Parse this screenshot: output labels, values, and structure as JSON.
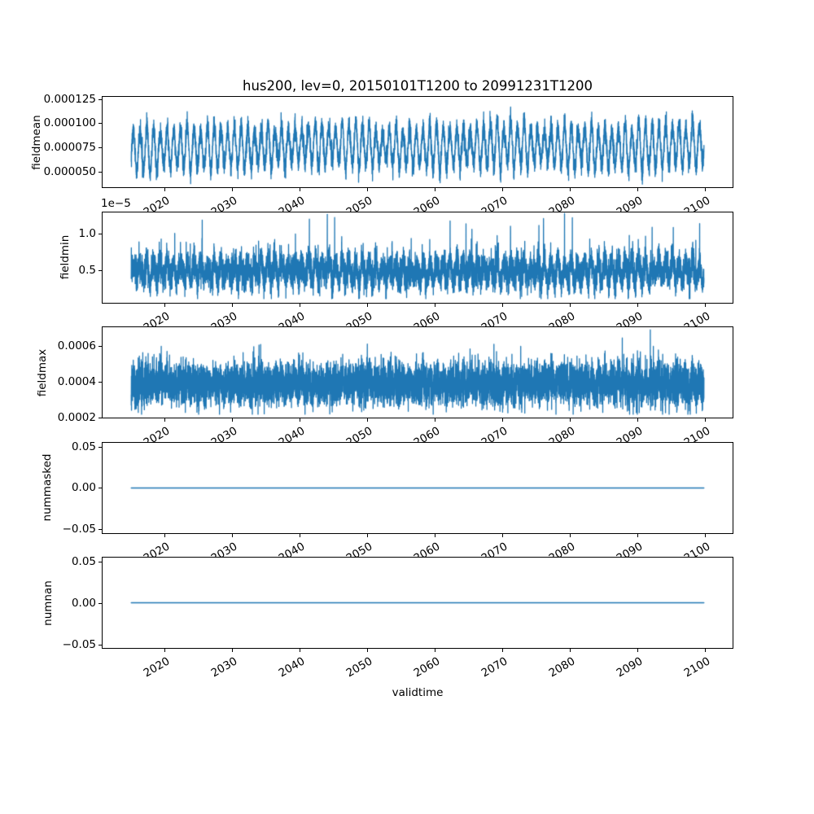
{
  "title": "hus200, lev=0, 20150101T1200 to 20991231T1200",
  "xlabel": "validtime",
  "colors": {
    "line": "#1f77b4",
    "axis": "#000000",
    "background": "#ffffff",
    "text": "#000000"
  },
  "xaxis": {
    "xlim": [
      2010.75,
      2104.25
    ],
    "data_range": [
      2015,
      2100
    ],
    "ticks": [
      2020,
      2030,
      2040,
      2050,
      2060,
      2070,
      2080,
      2090,
      2100
    ],
    "tick_labels": [
      "2020",
      "2030",
      "2040",
      "2050",
      "2060",
      "2070",
      "2080",
      "2090",
      "2100"
    ],
    "label_rotation_deg": 30
  },
  "chart_data": [
    {
      "type": "line",
      "name": "fieldmean",
      "ylabel": "fieldmean",
      "ylim": [
        3.3e-05,
        0.000128
      ],
      "yticks": [
        {
          "value": 0.000125,
          "label": "0.000125"
        },
        {
          "value": 0.0001,
          "label": "0.000100"
        },
        {
          "value": 7.5e-05,
          "label": "0.000075"
        },
        {
          "value": 5e-05,
          "label": "0.000050"
        }
      ],
      "offset_text": "",
      "series": {
        "kind": "seasonal_noise",
        "seed": 42,
        "n": 8500,
        "baseline": 6.9e-05,
        "ramp": 7e-06,
        "ramp_years": 12,
        "slow_amp": 1.5e-06,
        "slow_period": 28,
        "seasonal_amp": 2.05e-05,
        "amp_jitter": 0.28,
        "noise_sigma": 5.5e-06,
        "spike_prob": 0,
        "spike_add": [
          0,
          0
        ],
        "clip": [
          3.35e-05,
          0.000126
        ]
      }
    },
    {
      "type": "line",
      "name": "fieldmin",
      "ylabel": "fieldmin",
      "ylim": [
        4.2e-07,
        1.308e-05
      ],
      "yticks": [
        {
          "value": 1e-05,
          "label": "1.0"
        },
        {
          "value": 5e-06,
          "label": "0.5"
        }
      ],
      "offset_text": "1e−5",
      "series": {
        "kind": "seasonal_noise",
        "seed": 7,
        "n": 8500,
        "baseline": 4.9e-06,
        "ramp": 0,
        "ramp_years": 1,
        "slow_amp": 1e-07,
        "slow_period": 25,
        "seasonal_amp": 1.15e-06,
        "amp_jitter": 0.45,
        "noise_sigma": 1.1e-06,
        "spike_prob": 0.0024,
        "spike_add": [
          2.2e-06,
          6.8e-06
        ],
        "clip": [
          1e-06,
          1.295e-05
        ]
      }
    },
    {
      "type": "line",
      "name": "fieldmax",
      "ylabel": "fieldmax",
      "ylim": [
        0.000196,
        0.00071
      ],
      "yticks": [
        {
          "value": 0.0006,
          "label": "0.0006"
        },
        {
          "value": 0.0004,
          "label": "0.0004"
        },
        {
          "value": 0.0002,
          "label": "0.0002"
        }
      ],
      "offset_text": "",
      "series": {
        "kind": "seasonal_noise",
        "seed": 1337,
        "n": 9000,
        "baseline": 0.000388,
        "ramp": 0,
        "ramp_years": 1,
        "slow_amp": 4e-06,
        "slow_period": 31,
        "seasonal_amp": 2.2e-05,
        "amp_jitter": 0.5,
        "noise_sigma": 5.8e-05,
        "spike_prob": 0.0022,
        "spike_add": [
          0.00011,
          0.00025
        ],
        "clip": [
          0.000215,
          0.000695
        ]
      }
    },
    {
      "type": "line",
      "name": "nummasked",
      "ylabel": "nummasked",
      "ylim": [
        -0.0558,
        0.0558
      ],
      "yticks": [
        {
          "value": 0.05,
          "label": "0.05"
        },
        {
          "value": 0.0,
          "label": "0.00"
        },
        {
          "value": -0.05,
          "label": "−0.05"
        }
      ],
      "offset_text": "",
      "series": {
        "kind": "constant",
        "value": 0.0,
        "x_span": [
          2015,
          2100
        ]
      }
    },
    {
      "type": "line",
      "name": "numnan",
      "ylabel": "numnan",
      "ylim": [
        -0.0558,
        0.0558
      ],
      "yticks": [
        {
          "value": 0.05,
          "label": "0.05"
        },
        {
          "value": 0.0,
          "label": "0.00"
        },
        {
          "value": -0.05,
          "label": "−0.05"
        }
      ],
      "offset_text": "",
      "series": {
        "kind": "constant",
        "value": 0.0,
        "x_span": [
          2015,
          2100
        ]
      }
    }
  ]
}
